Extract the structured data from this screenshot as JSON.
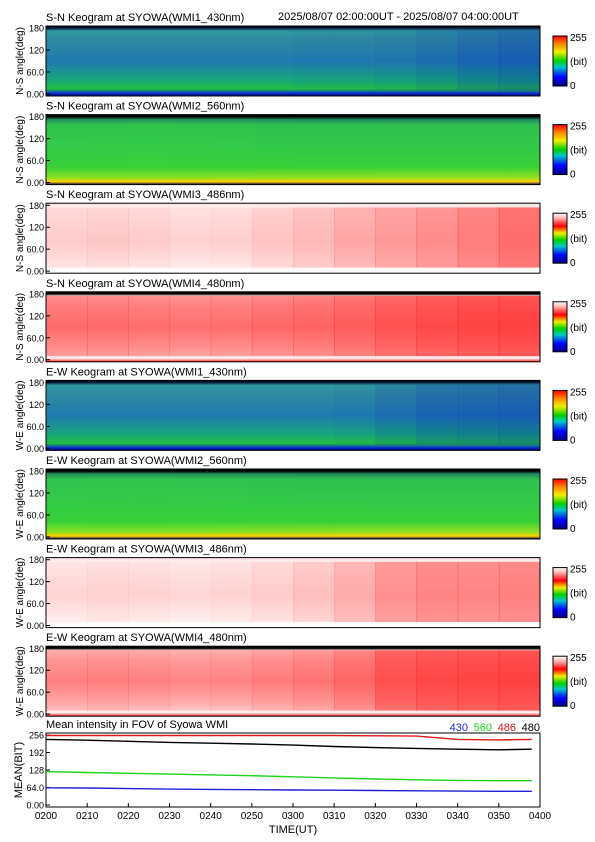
{
  "header": {
    "time_range": "2025/08/07 02:00:00UT - 2025/08/07 04:00:00UT"
  },
  "colorbar": {
    "max_label": "255",
    "min_label": "0",
    "unit_label": "(bit)"
  },
  "keograms": [
    {
      "title": "S-N Keogram at SYOWA(WMI1_430nm)",
      "ylabel": "N-S angle(deg)",
      "yticks": [
        "180",
        "120",
        "60.0",
        "0.00"
      ],
      "colormap": "rainbow",
      "pattern": "blue-green",
      "brightness_profile": [
        0.35,
        0.36,
        0.37,
        0.36,
        0.35,
        0.34,
        0.33,
        0.33,
        0.32,
        0.3,
        0.27,
        0.25
      ]
    },
    {
      "title": "S-N Keogram at SYOWA(WMI2_560nm)",
      "ylabel": "N-S angle(deg)",
      "yticks": [
        "180",
        "120",
        "60.0",
        "0.00"
      ],
      "colormap": "rainbow",
      "pattern": "green",
      "brightness_profile": [
        0.5,
        0.52,
        0.53,
        0.52,
        0.5,
        0.48,
        0.47,
        0.46,
        0.45,
        0.43,
        0.4,
        0.37
      ]
    },
    {
      "title": "S-N Keogram at SYOWA(WMI3_486nm)",
      "ylabel": "N-S angle(deg)",
      "yticks": [
        "180",
        "120",
        "60.0",
        "0.00"
      ],
      "colormap": "white-red",
      "pattern": "pale",
      "brightness_profile": [
        0.3,
        0.32,
        0.3,
        0.26,
        0.28,
        0.34,
        0.4,
        0.48,
        0.55,
        0.62,
        0.7,
        0.78
      ]
    },
    {
      "title": "S-N Keogram at SYOWA(WMI4_480nm)",
      "ylabel": "N-S angle(deg)",
      "yticks": [
        "180",
        "120",
        "60.0",
        "0.00"
      ],
      "colormap": "white-red",
      "pattern": "red",
      "brightness_profile": [
        0.55,
        0.56,
        0.54,
        0.52,
        0.54,
        0.58,
        0.62,
        0.68,
        0.76,
        0.82,
        0.86,
        0.88
      ]
    },
    {
      "title": "E-W Keogram at SYOWA(WMI1_430nm)",
      "ylabel": "W-E angle(deg)",
      "yticks": [
        "180",
        "120",
        "60.0",
        "0.00"
      ],
      "colormap": "rainbow",
      "pattern": "blue-green",
      "brightness_profile": [
        0.36,
        0.37,
        0.37,
        0.36,
        0.35,
        0.34,
        0.34,
        0.33,
        0.3,
        0.27,
        0.26,
        0.25
      ]
    },
    {
      "title": "E-W Keogram at SYOWA(WMI2_560nm)",
      "ylabel": "W-E angle(deg)",
      "yticks": [
        "180",
        "120",
        "60.0",
        "0.00"
      ],
      "colormap": "rainbow",
      "pattern": "green",
      "brightness_profile": [
        0.5,
        0.52,
        0.52,
        0.51,
        0.5,
        0.48,
        0.47,
        0.46,
        0.44,
        0.42,
        0.4,
        0.38
      ]
    },
    {
      "title": "E-W Keogram at SYOWA(WMI3_486nm)",
      "ylabel": "W-E angle(deg)",
      "yticks": [
        "180",
        "120",
        "60.0",
        "0.00"
      ],
      "colormap": "white-red",
      "pattern": "pale",
      "brightness_profile": [
        0.25,
        0.27,
        0.26,
        0.24,
        0.26,
        0.3,
        0.36,
        0.46,
        0.6,
        0.66,
        0.66,
        0.68
      ]
    },
    {
      "title": "E-W Keogram at SYOWA(WMI4_480nm)",
      "ylabel": "W-E angle(deg)",
      "yticks": [
        "180",
        "120",
        "60.0",
        "0.00"
      ],
      "colormap": "white-red",
      "pattern": "red",
      "brightness_profile": [
        0.4,
        0.42,
        0.4,
        0.36,
        0.38,
        0.44,
        0.5,
        0.6,
        0.78,
        0.84,
        0.86,
        0.88
      ]
    }
  ],
  "chart_data": {
    "type": "line",
    "title": "Mean intensity in FOV of Syowa WMI",
    "xlabel": "TIME(UT)",
    "ylabel": "MEAN(BIT)",
    "ylim": [
      0,
      256
    ],
    "xlim": [
      0,
      120
    ],
    "yticks": [
      "256",
      "192",
      "128",
      "64.0",
      "0.00"
    ],
    "x_tick_labels": [
      "0200",
      "0210",
      "0220",
      "0230",
      "0240",
      "0250",
      "0300",
      "0310",
      "0320",
      "0330",
      "0340",
      "0350",
      "0400"
    ],
    "legend_placement": "top-right",
    "series": [
      {
        "name": "430",
        "color": "#1f1fd8",
        "x": [
          0,
          10,
          20,
          30,
          40,
          50,
          60,
          70,
          80,
          90,
          100,
          110,
          118
        ],
        "values": [
          63,
          62,
          60,
          58,
          57,
          56,
          55,
          54,
          53,
          52,
          51,
          50,
          50
        ]
      },
      {
        "name": "560",
        "color": "#1ed21e",
        "x": [
          0,
          10,
          20,
          30,
          40,
          50,
          60,
          70,
          80,
          90,
          100,
          110,
          118
        ],
        "values": [
          122,
          119,
          116,
          113,
          110,
          107,
          103,
          99,
          95,
          92,
          90,
          89,
          89
        ]
      },
      {
        "name": "486",
        "color": "#e01818",
        "x": [
          0,
          10,
          20,
          30,
          40,
          50,
          60,
          70,
          80,
          90,
          100,
          110,
          118
        ],
        "values": [
          254,
          254,
          254,
          254,
          254,
          254,
          254,
          254,
          253,
          252,
          240,
          238,
          240
        ]
      },
      {
        "name": "480",
        "color": "#000000",
        "x": [
          0,
          10,
          20,
          30,
          40,
          50,
          60,
          70,
          80,
          90,
          100,
          110,
          118
        ],
        "values": [
          240,
          237,
          233,
          229,
          226,
          223,
          219,
          214,
          210,
          207,
          204,
          202,
          204
        ]
      }
    ]
  }
}
